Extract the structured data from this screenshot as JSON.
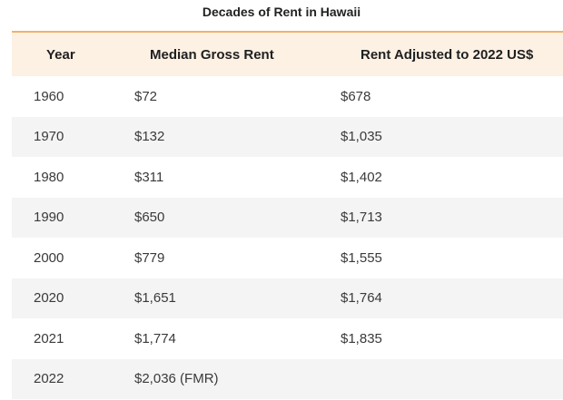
{
  "title": "Decades of Rent in Hawaii",
  "columns": [
    "Year",
    "Median Gross Rent",
    "Rent Adjusted to 2022 US$"
  ],
  "rows": [
    [
      "1960",
      "$72",
      "$678"
    ],
    [
      "1970",
      "$132",
      "$1,035"
    ],
    [
      "1980",
      "$311",
      "$1,402"
    ],
    [
      "1990",
      "$650",
      "$1,713"
    ],
    [
      "2000",
      "$779",
      "$1,555"
    ],
    [
      "2020",
      "$1,651",
      "$1,764"
    ],
    [
      "2021",
      "$1,774",
      "$1,835"
    ],
    [
      "2022",
      "$2,036 (FMR)",
      ""
    ]
  ],
  "colors": {
    "header_bg": "#fdf1e4",
    "header_border": "#f2b06b",
    "alt_row_bg": "#f4f4f4"
  }
}
